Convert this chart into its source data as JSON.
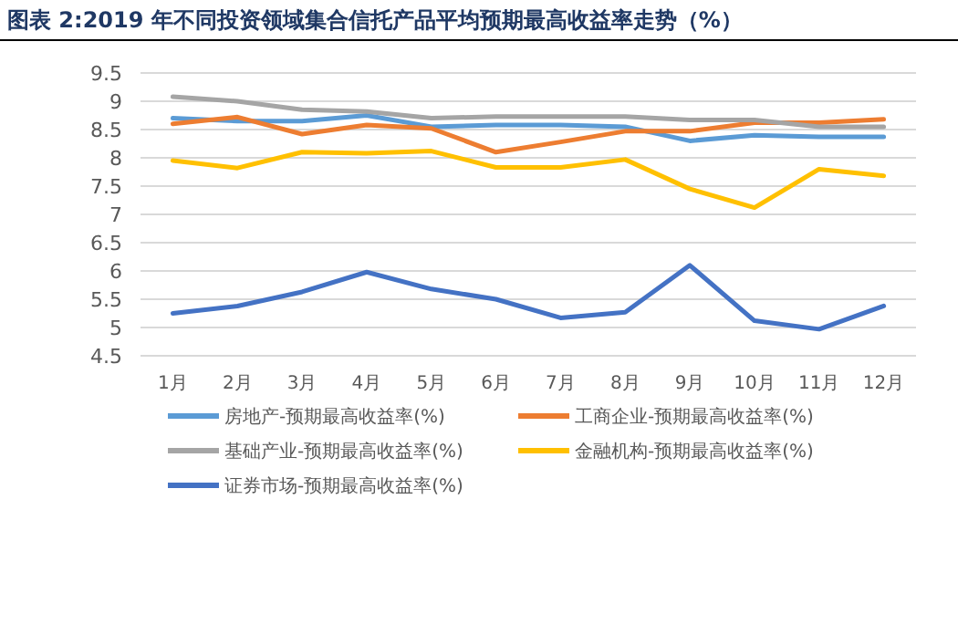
{
  "chart_data": {
    "type": "line",
    "title": "图表 2:2019 年不同投资领域集合信托产品平均预期最高收益率走势（%）",
    "categories": [
      "1月",
      "2月",
      "3月",
      "4月",
      "5月",
      "6月",
      "7月",
      "8月",
      "9月",
      "10月",
      "11月",
      "12月"
    ],
    "series": [
      {
        "name": "房地产-预期最高收益率(%)",
        "color": "#5b9bd5",
        "values": [
          8.7,
          8.65,
          8.65,
          8.75,
          8.55,
          8.58,
          8.58,
          8.55,
          8.3,
          8.4,
          8.37,
          8.37
        ]
      },
      {
        "name": "工商企业-预期最高收益率(%)",
        "color": "#ed7d31",
        "values": [
          8.6,
          8.72,
          8.42,
          8.58,
          8.52,
          8.1,
          8.28,
          8.47,
          8.47,
          8.62,
          8.62,
          8.68
        ]
      },
      {
        "name": "基础产业-预期最高收益率(%)",
        "color": "#a5a5a5",
        "values": [
          9.08,
          9.0,
          8.85,
          8.82,
          8.7,
          8.73,
          8.73,
          8.73,
          8.67,
          8.67,
          8.55,
          8.55
        ]
      },
      {
        "name": "金融机构-预期最高收益率(%)",
        "color": "#ffc000",
        "values": [
          7.95,
          7.82,
          8.1,
          8.08,
          8.12,
          7.83,
          7.83,
          7.97,
          7.45,
          7.12,
          7.8,
          7.68
        ]
      },
      {
        "name": "证券市场-预期最高收益率(%)",
        "color": "#4472c4",
        "values": [
          5.25,
          5.38,
          5.63,
          5.98,
          5.68,
          5.5,
          5.17,
          5.27,
          6.1,
          5.12,
          4.97,
          5.38
        ]
      }
    ],
    "ylim": [
      4.5,
      9.5
    ],
    "yticks": [
      {
        "value": 4.5,
        "label": "4.5"
      },
      5,
      {
        "value": 5.5,
        "label": "5.5"
      },
      6,
      {
        "value": 6.5,
        "label": "6.5"
      },
      7,
      {
        "value": 7.5,
        "label": "7.5"
      },
      8,
      {
        "value": 8.5,
        "label": "8.5"
      },
      9,
      {
        "value": 9.5,
        "label": "9.5"
      }
    ],
    "grid": "y",
    "legend": "bottom",
    "marker": "none",
    "line_style": "solid"
  }
}
